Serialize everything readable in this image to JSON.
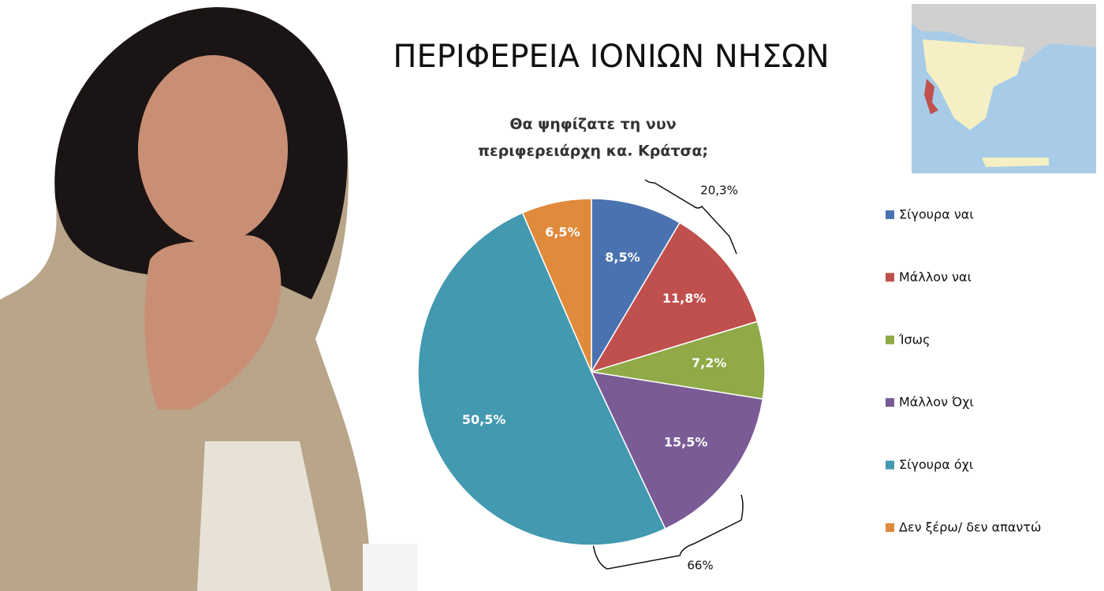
{
  "chart_data": {
    "type": "pie",
    "title": "ΠΕΡΙΦΕΡΕΙΑ ΙΟΝΙΩΝ ΝΗΣΩΝ",
    "subtitle": [
      "Θα ψηφίζατε τη νυν",
      "περιφερειάρχη κα. Κράτσα;"
    ],
    "categories": [
      "Σίγουρα ναι",
      "Μάλλον ναι",
      "Ίσως",
      "Μάλλον Όχι",
      "Σίγουρα όχι",
      "Δεν ξέρω/ δεν απαντώ"
    ],
    "values": [
      8.5,
      11.8,
      7.2,
      15.5,
      50.5,
      6.5
    ],
    "value_labels": [
      "8,5%",
      "11,8%",
      "7,2%",
      "15,5%",
      "50,5%",
      "6,5%"
    ],
    "colors": [
      "#4a72b0",
      "#c0504d",
      "#8faa46",
      "#7a5b96",
      "#4399b0",
      "#e08a3c"
    ],
    "annotations": [
      {
        "value": 20.3,
        "label": "20,3%"
      },
      {
        "value": 66,
        "label": "66%"
      }
    ],
    "legend": "right"
  }
}
